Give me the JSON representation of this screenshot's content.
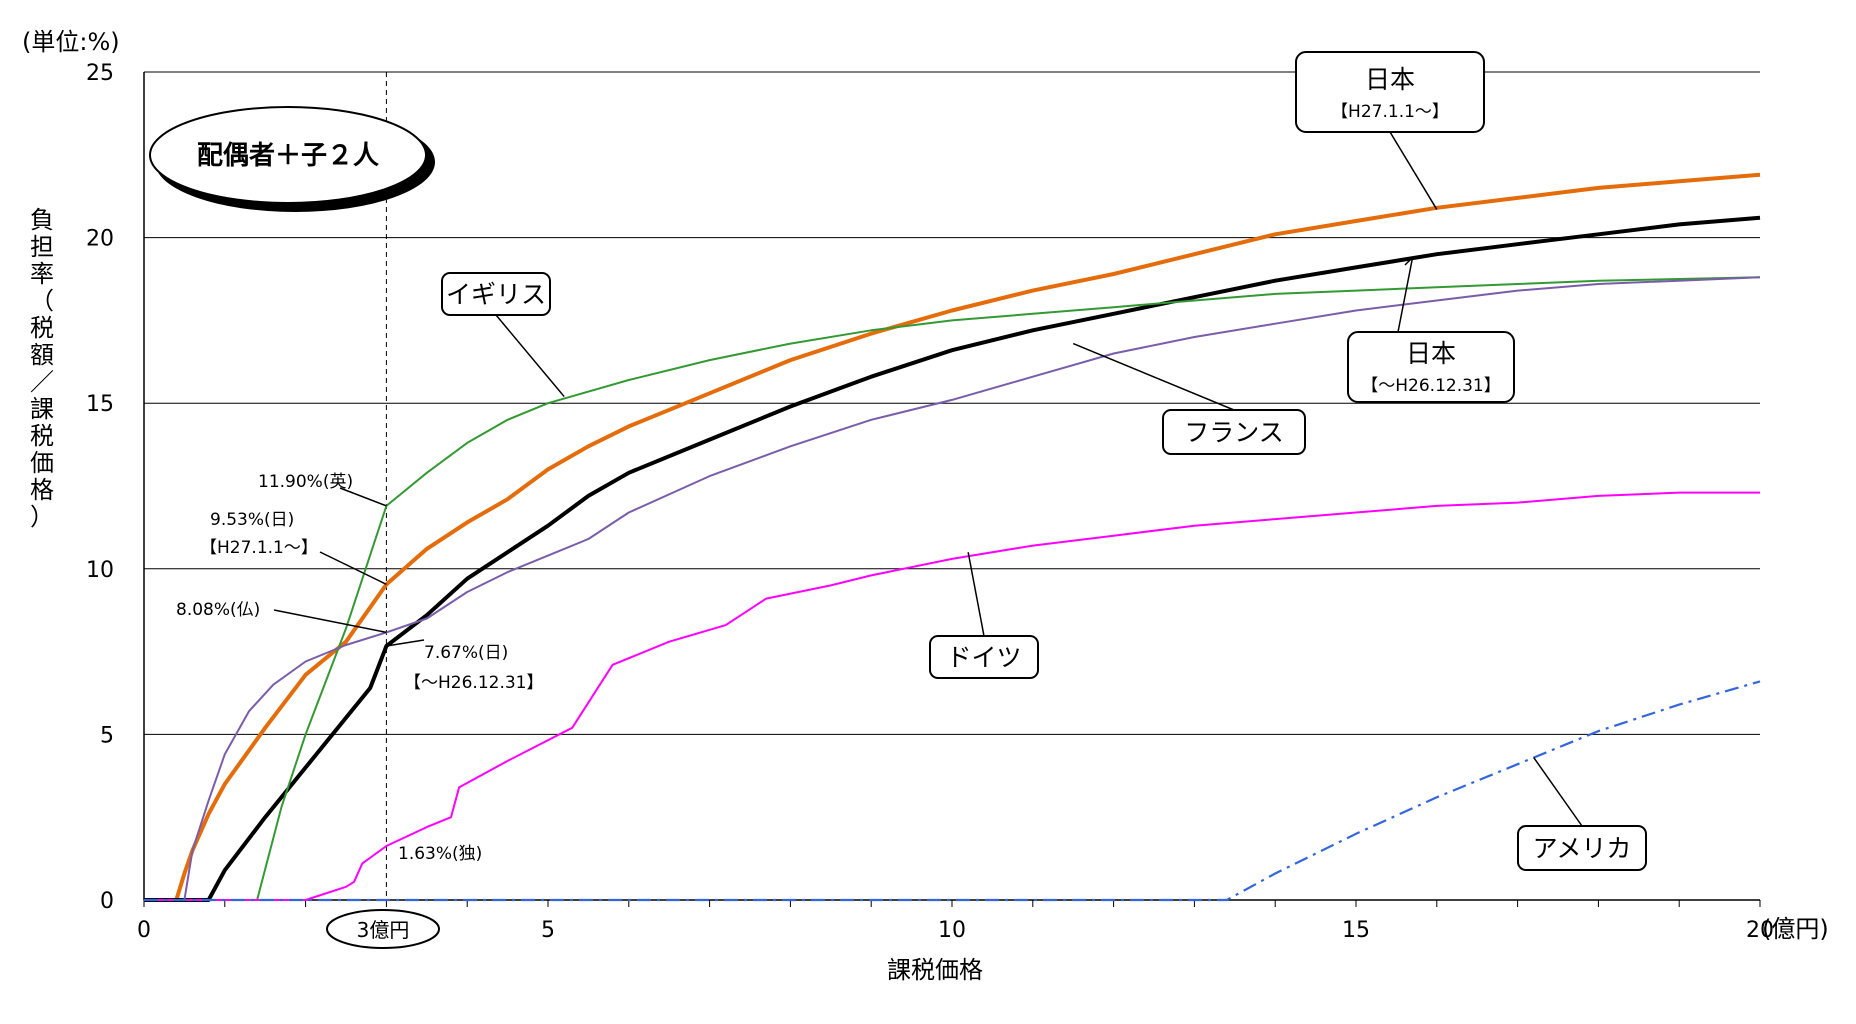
{
  "chart_data": {
    "type": "line",
    "unit_label": "(単位:%)",
    "ylabel": "負担率（税額／課税価格）",
    "xlabel": "課税価格",
    "x_unit": "(億円)",
    "xlim": [
      0,
      20
    ],
    "ylim": [
      0,
      25
    ],
    "x_ticks": [
      0,
      5,
      10,
      15,
      20
    ],
    "y_ticks": [
      0,
      5,
      10,
      15,
      20,
      25
    ],
    "grid": "horizontal",
    "scenario_label": "配偶者＋子２人",
    "marker": {
      "x": 3,
      "label": "3億円"
    },
    "series": [
      {
        "name": "日本",
        "period": "【H27.1.1～】",
        "color": "#E46C0A",
        "style": "solid-thick",
        "points": [
          [
            0,
            0
          ],
          [
            0.4,
            0
          ],
          [
            0.5,
            0.8
          ],
          [
            0.6,
            1.5
          ],
          [
            0.8,
            2.6
          ],
          [
            1,
            3.5
          ],
          [
            1.5,
            5.2
          ],
          [
            2,
            6.8
          ],
          [
            2.5,
            7.8
          ],
          [
            3,
            9.53
          ],
          [
            3.5,
            10.6
          ],
          [
            4,
            11.4
          ],
          [
            4.5,
            12.1
          ],
          [
            5,
            13.0
          ],
          [
            5.5,
            13.7
          ],
          [
            6,
            14.3
          ],
          [
            7,
            15.3
          ],
          [
            8,
            16.3
          ],
          [
            9,
            17.1
          ],
          [
            10,
            17.8
          ],
          [
            11,
            18.4
          ],
          [
            12,
            18.9
          ],
          [
            13,
            19.5
          ],
          [
            14,
            20.1
          ],
          [
            15,
            20.5
          ],
          [
            16,
            20.9
          ],
          [
            17,
            21.2
          ],
          [
            18,
            21.5
          ],
          [
            19,
            21.7
          ],
          [
            20,
            21.9
          ]
        ]
      },
      {
        "name": "日本",
        "period": "【～H26.12.31】",
        "color": "#000000",
        "style": "solid-thick",
        "points": [
          [
            0,
            0
          ],
          [
            0.8,
            0
          ],
          [
            1,
            0.9
          ],
          [
            1.5,
            2.5
          ],
          [
            2,
            4.0
          ],
          [
            2.5,
            5.5
          ],
          [
            2.8,
            6.4
          ],
          [
            3,
            7.67
          ],
          [
            3.5,
            8.6
          ],
          [
            4,
            9.7
          ],
          [
            4.5,
            10.5
          ],
          [
            5,
            11.3
          ],
          [
            5.5,
            12.2
          ],
          [
            6,
            12.9
          ],
          [
            7,
            13.9
          ],
          [
            8,
            14.9
          ],
          [
            9,
            15.8
          ],
          [
            10,
            16.6
          ],
          [
            11,
            17.2
          ],
          [
            12,
            17.7
          ],
          [
            13,
            18.2
          ],
          [
            14,
            18.7
          ],
          [
            15,
            19.1
          ],
          [
            16,
            19.5
          ],
          [
            17,
            19.8
          ],
          [
            18,
            20.1
          ],
          [
            19,
            20.4
          ],
          [
            20,
            20.6
          ]
        ]
      },
      {
        "name": "イギリス",
        "color": "#339933",
        "style": "solid",
        "points": [
          [
            0,
            0
          ],
          [
            1.4,
            0
          ],
          [
            1.7,
            2.8
          ],
          [
            2,
            5.0
          ],
          [
            2.5,
            8.2
          ],
          [
            3,
            11.9
          ],
          [
            3.5,
            12.9
          ],
          [
            4,
            13.8
          ],
          [
            4.5,
            14.5
          ],
          [
            5,
            15.0
          ],
          [
            6,
            15.7
          ],
          [
            7,
            16.3
          ],
          [
            8,
            16.8
          ],
          [
            9,
            17.2
          ],
          [
            10,
            17.5
          ],
          [
            11,
            17.7
          ],
          [
            12,
            17.9
          ],
          [
            13,
            18.1
          ],
          [
            14,
            18.3
          ],
          [
            15,
            18.4
          ],
          [
            16,
            18.5
          ],
          [
            17,
            18.6
          ],
          [
            18,
            18.7
          ],
          [
            19,
            18.75
          ],
          [
            20,
            18.8
          ]
        ]
      },
      {
        "name": "フランス",
        "color": "#7A5DAA",
        "style": "solid",
        "points": [
          [
            0,
            0
          ],
          [
            0.5,
            0
          ],
          [
            0.6,
            1.5
          ],
          [
            0.8,
            3.0
          ],
          [
            1,
            4.4
          ],
          [
            1.3,
            5.7
          ],
          [
            1.6,
            6.5
          ],
          [
            2,
            7.2
          ],
          [
            2.5,
            7.7
          ],
          [
            3,
            8.08
          ],
          [
            3.5,
            8.5
          ],
          [
            4,
            9.3
          ],
          [
            4.5,
            9.9
          ],
          [
            5,
            10.4
          ],
          [
            5.5,
            10.9
          ],
          [
            6,
            11.7
          ],
          [
            7,
            12.8
          ],
          [
            8,
            13.7
          ],
          [
            9,
            14.5
          ],
          [
            10,
            15.1
          ],
          [
            11,
            15.8
          ],
          [
            12,
            16.5
          ],
          [
            13,
            17.0
          ],
          [
            14,
            17.4
          ],
          [
            15,
            17.8
          ],
          [
            16,
            18.1
          ],
          [
            17,
            18.4
          ],
          [
            18,
            18.6
          ],
          [
            19,
            18.7
          ],
          [
            20,
            18.8
          ]
        ]
      },
      {
        "name": "ドイツ",
        "color": "#FF00FF",
        "style": "solid",
        "points": [
          [
            0,
            0
          ],
          [
            2,
            0
          ],
          [
            2.5,
            0.4
          ],
          [
            2.6,
            0.55
          ],
          [
            2.7,
            1.1
          ],
          [
            3,
            1.63
          ],
          [
            3.5,
            2.2
          ],
          [
            3.8,
            2.5
          ],
          [
            3.9,
            3.4
          ],
          [
            4.5,
            4.2
          ],
          [
            5.3,
            5.2
          ],
          [
            5.8,
            7.1
          ],
          [
            6.5,
            7.8
          ],
          [
            7.2,
            8.3
          ],
          [
            7.7,
            9.1
          ],
          [
            8.5,
            9.5
          ],
          [
            9,
            9.8
          ],
          [
            10,
            10.3
          ],
          [
            11,
            10.7
          ],
          [
            12,
            11.0
          ],
          [
            13,
            11.3
          ],
          [
            14,
            11.5
          ],
          [
            15,
            11.7
          ],
          [
            16,
            11.9
          ],
          [
            17,
            12.0
          ],
          [
            18,
            12.2
          ],
          [
            19,
            12.3
          ],
          [
            20,
            12.3
          ]
        ]
      },
      {
        "name": "アメリカ",
        "color": "#3366DD",
        "style": "dash-dot",
        "points": [
          [
            0,
            0
          ],
          [
            13.4,
            0
          ],
          [
            14,
            0.8
          ],
          [
            15,
            2.0
          ],
          [
            16,
            3.1
          ],
          [
            17,
            4.1
          ],
          [
            18,
            5.1
          ],
          [
            19,
            5.9
          ],
          [
            20,
            6.6
          ]
        ]
      }
    ],
    "annotations": [
      {
        "text": "11.90%(英)"
      },
      {
        "text": "9.53%(日)"
      },
      {
        "text": "【H27.1.1～】"
      },
      {
        "text": "8.08%(仏)"
      },
      {
        "text": "7.67%(日)"
      },
      {
        "text": "【～H26.12.31】"
      },
      {
        "text": "1.63%(独)"
      }
    ]
  }
}
